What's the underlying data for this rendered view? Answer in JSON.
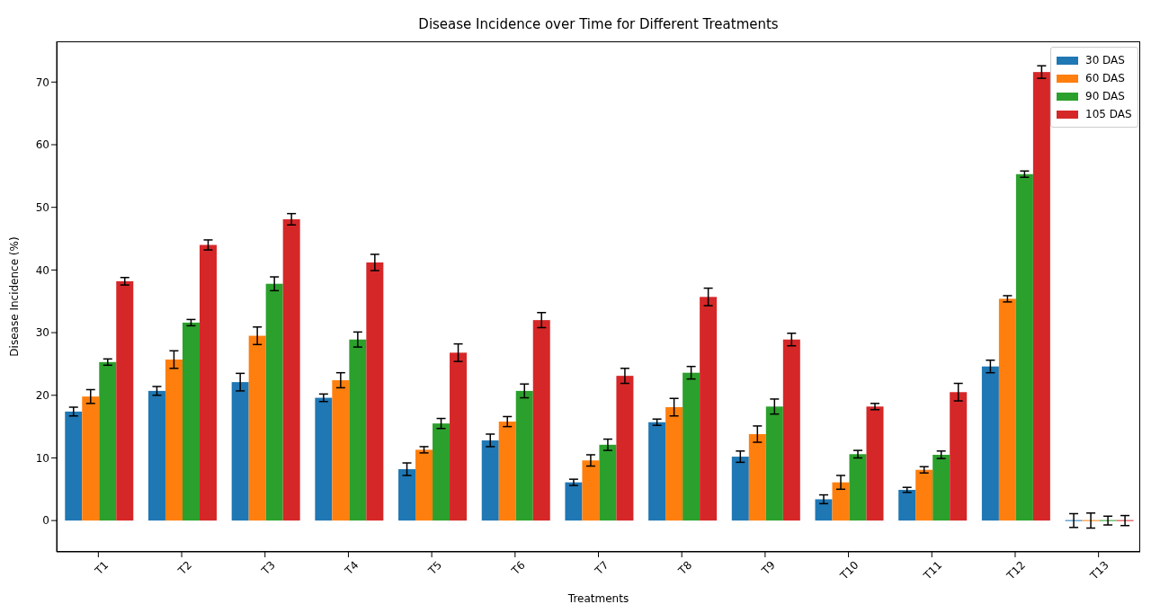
{
  "chart_data": {
    "type": "bar",
    "title": "Disease Incidence over Time for Different Treatments",
    "xlabel": "Treatments",
    "ylabel": "Disease Incidence (%)",
    "categories": [
      "T1",
      "T2",
      "T3",
      "T4",
      "T5",
      "T6",
      "T7",
      "T8",
      "T9",
      "T10",
      "T11",
      "T12",
      "T13"
    ],
    "series": [
      {
        "name": "30 DAS",
        "color": "#1f77b4",
        "values": [
          17.4,
          20.7,
          22.1,
          19.6,
          8.2,
          12.8,
          6.1,
          15.7,
          10.2,
          3.4,
          4.9,
          24.6,
          0
        ],
        "errors": [
          0.7,
          0.7,
          1.4,
          0.6,
          1.0,
          1.0,
          0.5,
          0.5,
          0.9,
          0.7,
          0.4,
          1.0,
          1.1
        ]
      },
      {
        "name": "60 DAS",
        "color": "#ff7f0e",
        "values": [
          19.8,
          25.7,
          29.5,
          22.4,
          11.3,
          15.8,
          9.6,
          18.1,
          13.8,
          6.1,
          8.1,
          35.4,
          0
        ],
        "errors": [
          1.1,
          1.4,
          1.4,
          1.2,
          0.5,
          0.8,
          0.9,
          1.4,
          1.3,
          1.1,
          0.5,
          0.5,
          1.2
        ]
      },
      {
        "name": "90 DAS",
        "color": "#2ca02c",
        "values": [
          25.3,
          31.6,
          37.8,
          28.9,
          15.5,
          20.7,
          12.1,
          23.6,
          18.2,
          10.6,
          10.5,
          55.3,
          0
        ],
        "errors": [
          0.5,
          0.5,
          1.1,
          1.2,
          0.8,
          1.1,
          0.9,
          1.0,
          1.2,
          0.6,
          0.6,
          0.5,
          0.7
        ]
      },
      {
        "name": "105 DAS",
        "color": "#d62728",
        "values": [
          38.2,
          44.0,
          48.1,
          41.2,
          26.8,
          32.0,
          23.1,
          35.7,
          28.9,
          18.2,
          20.5,
          71.6,
          0
        ],
        "errors": [
          0.6,
          0.8,
          0.9,
          1.3,
          1.4,
          1.2,
          1.2,
          1.4,
          1.0,
          0.5,
          1.4,
          1.0,
          0.8
        ]
      }
    ],
    "ylim": [
      -5,
      76.5
    ],
    "yticks": [
      0,
      10,
      20,
      30,
      40,
      50,
      60,
      70
    ],
    "grid": false,
    "legend": "top right"
  }
}
